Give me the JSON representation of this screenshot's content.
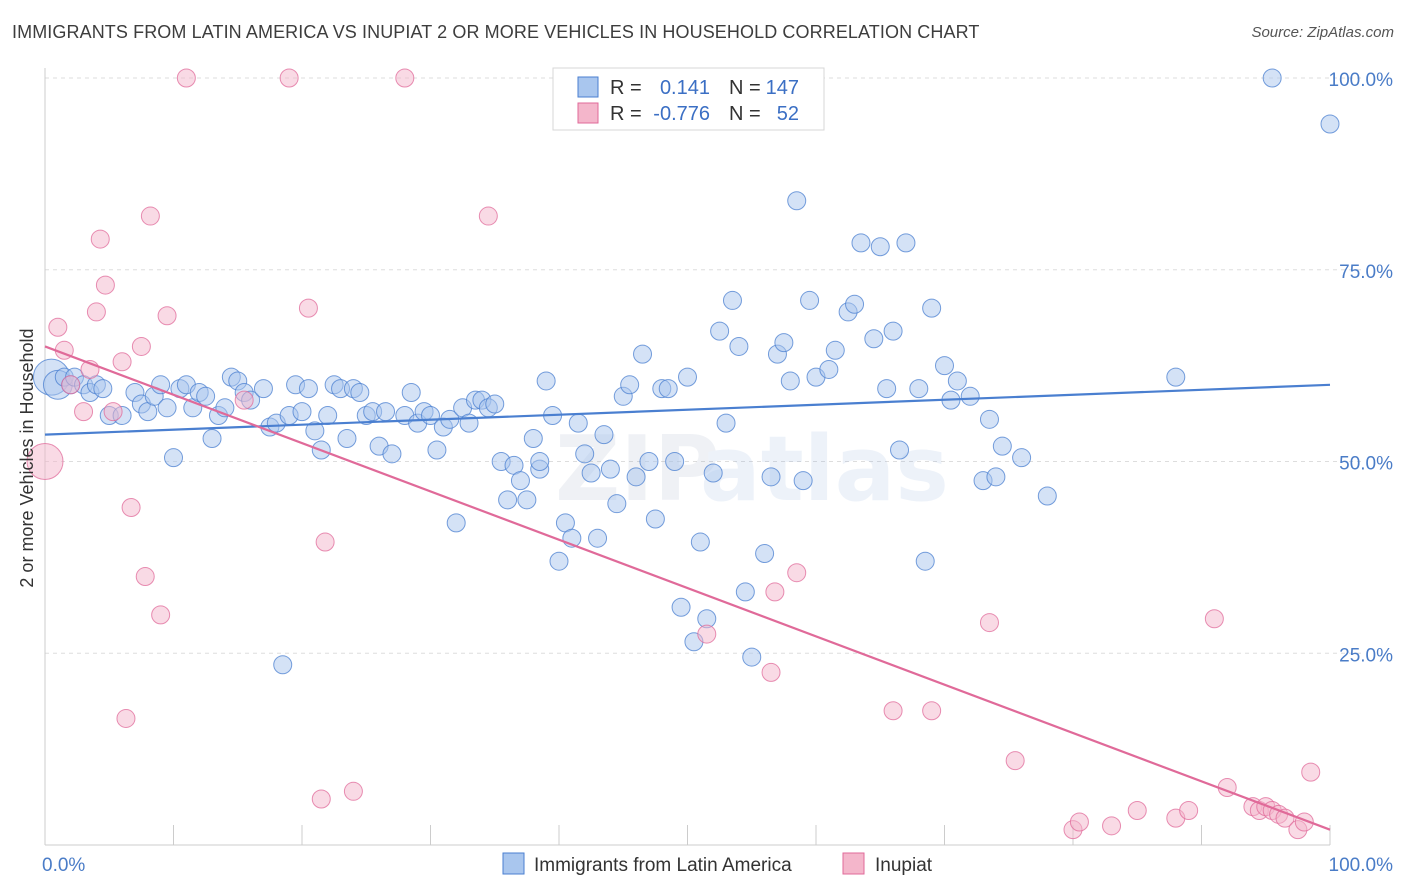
{
  "title": "IMMIGRANTS FROM LATIN AMERICA VS INUPIAT 2 OR MORE VEHICLES IN HOUSEHOLD CORRELATION CHART",
  "source": "Source: ZipAtlas.com",
  "watermark": {
    "zip": "ZIP",
    "atlas": "atlas"
  },
  "colors": {
    "blue": "#4a7fd0",
    "blue_fill": "#a9c6ee",
    "pink": "#e06a99",
    "pink_fill": "#f4b6cb",
    "tick": "#4a7cc7",
    "grid": "#dddddd"
  },
  "legend": {
    "rows": [
      {
        "r_label": "R =",
        "r_value": "0.141",
        "n_label": "N =",
        "n_value": "147"
      },
      {
        "r_label": "R =",
        "r_value": "-0.776",
        "n_label": "N =",
        "n_value": "52"
      }
    ]
  },
  "bottom_legend": [
    "Immigrants from Latin America",
    "Inupiat"
  ],
  "chart_data": {
    "type": "scatter",
    "xlabel": "",
    "ylabel": "2 or more Vehicles in Household",
    "xlim": [
      0,
      100
    ],
    "ylim": [
      0,
      100
    ],
    "x_tick_labels": [
      "0.0%",
      "100.0%"
    ],
    "y_tick_labels": [
      "25.0%",
      "50.0%",
      "75.0%",
      "100.0%"
    ],
    "y_ticks": [
      25,
      50,
      75,
      100
    ],
    "grid": true,
    "legend_position": "top-center",
    "series": [
      {
        "name": "Immigrants from Latin America",
        "trend": [
          [
            0,
            53.5
          ],
          [
            100,
            60
          ]
        ],
        "points": [
          [
            0.5,
            61,
            2
          ],
          [
            1,
            60,
            1.6
          ],
          [
            1.5,
            61,
            1
          ],
          [
            2,
            60,
            1
          ],
          [
            2.3,
            61,
            1
          ],
          [
            3,
            60,
            1
          ],
          [
            3.5,
            59,
            1
          ],
          [
            4,
            60,
            1
          ],
          [
            4.5,
            59.5,
            1
          ],
          [
            5,
            56,
            1
          ],
          [
            6,
            56,
            1
          ],
          [
            7,
            59,
            1
          ],
          [
            7.5,
            57.5,
            1
          ],
          [
            8,
            56.5,
            1
          ],
          [
            8.5,
            58.5,
            1
          ],
          [
            9,
            60,
            1
          ],
          [
            9.5,
            57,
            1
          ],
          [
            10,
            50.5,
            1
          ],
          [
            10.5,
            59.5,
            1
          ],
          [
            11,
            60,
            1
          ],
          [
            11.5,
            57,
            1
          ],
          [
            12,
            59,
            1
          ],
          [
            12.5,
            58.5,
            1
          ],
          [
            13,
            53,
            1
          ],
          [
            13.5,
            56,
            1
          ],
          [
            14,
            57,
            1
          ],
          [
            14.5,
            61,
            1
          ],
          [
            15,
            60.5,
            1
          ],
          [
            15.5,
            59,
            1
          ],
          [
            16,
            58,
            1
          ],
          [
            17,
            59.5,
            1
          ],
          [
            17.5,
            54.5,
            1
          ],
          [
            18,
            55,
            1
          ],
          [
            18.5,
            23.5,
            1
          ],
          [
            19,
            56,
            1
          ],
          [
            19.5,
            60,
            1
          ],
          [
            20,
            56.5,
            1
          ],
          [
            20.5,
            59.5,
            1
          ],
          [
            21,
            54,
            1
          ],
          [
            21.5,
            51.5,
            1
          ],
          [
            22,
            56,
            1
          ],
          [
            22.5,
            60,
            1
          ],
          [
            23,
            59.5,
            1
          ],
          [
            23.5,
            53,
            1
          ],
          [
            24,
            59.5,
            1
          ],
          [
            24.5,
            59,
            1
          ],
          [
            25,
            56,
            1
          ],
          [
            25.5,
            56.5,
            1
          ],
          [
            26,
            52,
            1
          ],
          [
            26.5,
            56.5,
            1
          ],
          [
            27,
            51,
            1
          ],
          [
            28,
            56,
            1
          ],
          [
            28.5,
            59,
            1
          ],
          [
            29,
            55,
            1
          ],
          [
            29.5,
            56.5,
            1
          ],
          [
            30,
            56,
            1
          ],
          [
            30.5,
            51.5,
            1
          ],
          [
            31,
            54.5,
            1
          ],
          [
            31.5,
            55.5,
            1
          ],
          [
            32,
            42,
            1
          ],
          [
            32.5,
            57,
            1
          ],
          [
            33,
            55,
            1
          ],
          [
            33.5,
            58,
            1
          ],
          [
            34,
            58,
            1
          ],
          [
            34.5,
            57,
            1
          ],
          [
            35,
            57.5,
            1
          ],
          [
            35.5,
            50,
            1
          ],
          [
            36,
            45,
            1
          ],
          [
            36.5,
            49.5,
            1
          ],
          [
            37,
            47.5,
            1
          ],
          [
            37.5,
            45,
            1
          ],
          [
            38,
            53,
            1
          ],
          [
            38.5,
            49,
            1
          ],
          [
            38.5,
            50,
            1
          ],
          [
            39,
            60.5,
            1
          ],
          [
            39.5,
            56,
            1
          ],
          [
            40,
            37,
            1
          ],
          [
            40.5,
            42,
            1
          ],
          [
            41,
            40,
            1
          ],
          [
            41.5,
            55,
            1
          ],
          [
            42,
            51,
            1
          ],
          [
            42.5,
            48.5,
            1
          ],
          [
            43,
            40,
            1
          ],
          [
            43.5,
            53.5,
            1
          ],
          [
            44,
            49,
            1
          ],
          [
            44.5,
            44.5,
            1
          ],
          [
            45,
            58.5,
            1
          ],
          [
            45.5,
            60,
            1
          ],
          [
            46,
            48,
            1
          ],
          [
            46.5,
            64,
            1
          ],
          [
            47,
            50,
            1
          ],
          [
            47.5,
            42.5,
            1
          ],
          [
            48,
            59.5,
            1
          ],
          [
            48.5,
            59.5,
            1
          ],
          [
            49,
            50,
            1
          ],
          [
            49.5,
            31,
            1
          ],
          [
            50,
            61,
            1
          ],
          [
            50.5,
            26.5,
            1
          ],
          [
            51,
            39.5,
            1
          ],
          [
            51.5,
            29.5,
            1
          ],
          [
            52,
            48.5,
            1
          ],
          [
            52.5,
            67,
            1
          ],
          [
            53,
            55,
            1
          ],
          [
            53.5,
            71,
            1
          ],
          [
            54,
            65,
            1
          ],
          [
            54.5,
            33,
            1
          ],
          [
            55,
            24.5,
            1
          ],
          [
            56,
            38,
            1
          ],
          [
            56.5,
            48,
            1
          ],
          [
            57,
            64,
            1
          ],
          [
            57.5,
            65.5,
            1
          ],
          [
            58,
            60.5,
            1
          ],
          [
            58.5,
            84,
            1
          ],
          [
            59,
            47.5,
            1
          ],
          [
            59.5,
            71,
            1
          ],
          [
            60,
            61,
            1
          ],
          [
            61,
            62,
            1
          ],
          [
            61.5,
            64.5,
            1
          ],
          [
            62.5,
            69.5,
            1
          ],
          [
            63,
            70.5,
            1
          ],
          [
            63.5,
            78.5,
            1
          ],
          [
            64.5,
            66,
            1
          ],
          [
            65,
            78,
            1
          ],
          [
            65.5,
            59.5,
            1
          ],
          [
            66,
            67,
            1
          ],
          [
            66.5,
            51.5,
            1
          ],
          [
            67,
            78.5,
            1
          ],
          [
            68,
            59.5,
            1
          ],
          [
            68.5,
            37,
            1
          ],
          [
            69,
            70,
            1
          ],
          [
            70,
            62.5,
            1
          ],
          [
            70.5,
            58,
            1
          ],
          [
            71,
            60.5,
            1
          ],
          [
            72,
            58.5,
            1
          ],
          [
            73,
            47.5,
            1
          ],
          [
            73.5,
            55.5,
            1
          ],
          [
            74,
            48,
            1
          ],
          [
            74.5,
            52,
            1
          ],
          [
            76,
            50.5,
            1
          ],
          [
            78,
            45.5,
            1
          ],
          [
            88,
            61,
            1
          ],
          [
            95.5,
            100,
            1
          ],
          [
            100,
            94,
            1
          ]
        ]
      },
      {
        "name": "Inupiat",
        "trend": [
          [
            0,
            65
          ],
          [
            100,
            2
          ]
        ],
        "points": [
          [
            0,
            50,
            2
          ],
          [
            1,
            67.5,
            1
          ],
          [
            1.5,
            64.5,
            1
          ],
          [
            2,
            60,
            1
          ],
          [
            3,
            56.5,
            1
          ],
          [
            3.5,
            62,
            1
          ],
          [
            4,
            69.5,
            1
          ],
          [
            4.3,
            79,
            1
          ],
          [
            4.7,
            73,
            1
          ],
          [
            5.3,
            56.5,
            1
          ],
          [
            6,
            63,
            1
          ],
          [
            6.3,
            16.5,
            1
          ],
          [
            6.7,
            44,
            1
          ],
          [
            7.5,
            65,
            1
          ],
          [
            7.8,
            35,
            1
          ],
          [
            8.2,
            82,
            1
          ],
          [
            9,
            30,
            1
          ],
          [
            9.5,
            69,
            1
          ],
          [
            11,
            100,
            1
          ],
          [
            15.5,
            58,
            1
          ],
          [
            19,
            100,
            1
          ],
          [
            20.5,
            70,
            1
          ],
          [
            21.5,
            6,
            1
          ],
          [
            21.8,
            39.5,
            1
          ],
          [
            24,
            7,
            1
          ],
          [
            28,
            100,
            1
          ],
          [
            34.5,
            82,
            1
          ],
          [
            51.5,
            27.5,
            1
          ],
          [
            56.5,
            22.5,
            1
          ],
          [
            56.8,
            33,
            1
          ],
          [
            58.5,
            35.5,
            1
          ],
          [
            66,
            17.5,
            1
          ],
          [
            69,
            17.5,
            1
          ],
          [
            73.5,
            29,
            1
          ],
          [
            75.5,
            11,
            1
          ],
          [
            80,
            2,
            1
          ],
          [
            80.5,
            3,
            1
          ],
          [
            83,
            2.5,
            1
          ],
          [
            85,
            4.5,
            1
          ],
          [
            88,
            3.5,
            1
          ],
          [
            89,
            4.5,
            1
          ],
          [
            91,
            29.5,
            1
          ],
          [
            92,
            7.5,
            1
          ],
          [
            94,
            5,
            1
          ],
          [
            94.5,
            4.5,
            1
          ],
          [
            95,
            5,
            1
          ],
          [
            95.5,
            4.5,
            1
          ],
          [
            96,
            4,
            1
          ],
          [
            96.5,
            3.5,
            1
          ],
          [
            97.5,
            2,
            1
          ],
          [
            98,
            3,
            1
          ],
          [
            98.5,
            9.5,
            1
          ]
        ]
      }
    ]
  }
}
